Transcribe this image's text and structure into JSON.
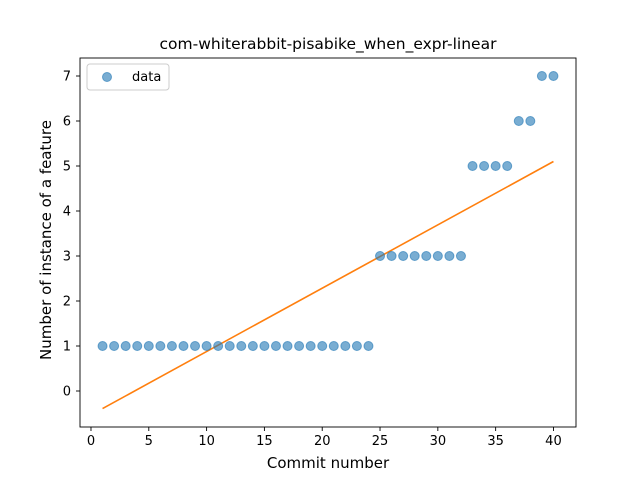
{
  "chart_data": {
    "type": "scatter",
    "title": "com-whiterabbit-pisabike_when_expr-linear",
    "xlabel": "Commit number",
    "ylabel": "Number of instance of a feature",
    "xlim": [
      -0.95,
      41.95
    ],
    "ylim": [
      -0.8,
      7.4
    ],
    "xticks": [
      0,
      5,
      10,
      15,
      20,
      25,
      30,
      35,
      40
    ],
    "yticks": [
      0,
      1,
      2,
      3,
      4,
      5,
      6,
      7
    ],
    "grid": false,
    "legend": {
      "position": "upper-left",
      "entries": [
        "data"
      ]
    },
    "series": [
      {
        "name": "data",
        "kind": "points",
        "color": "#1f77b4",
        "x": [
          1,
          2,
          3,
          4,
          5,
          6,
          7,
          8,
          9,
          10,
          11,
          12,
          13,
          14,
          15,
          16,
          17,
          18,
          19,
          20,
          21,
          22,
          23,
          24,
          25,
          26,
          27,
          28,
          29,
          30,
          31,
          32,
          33,
          34,
          35,
          36,
          37,
          38,
          39,
          40
        ],
        "y": [
          1,
          1,
          1,
          1,
          1,
          1,
          1,
          1,
          1,
          1,
          1,
          1,
          1,
          1,
          1,
          1,
          1,
          1,
          1,
          1,
          1,
          1,
          1,
          1,
          3,
          3,
          3,
          3,
          3,
          3,
          3,
          3,
          5,
          5,
          5,
          5,
          6,
          6,
          7,
          7
        ]
      },
      {
        "kind": "fit-line",
        "color": "#ff7f0e",
        "x": [
          1,
          40
        ],
        "y": [
          -0.39,
          5.1
        ]
      }
    ]
  }
}
